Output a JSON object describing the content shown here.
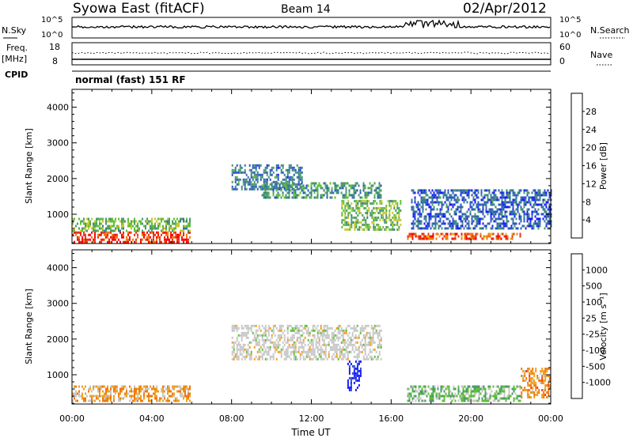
{
  "header": {
    "title": "Syowa East (fitACF)",
    "beam": "Beam 14",
    "date": "02/Apr/2012"
  },
  "nsky_panel": {
    "left_label": "N.Sky",
    "right_label": "N.Search",
    "left_ticks": [
      "10^5",
      "10^0"
    ],
    "right_ticks": [
      "10^5",
      "10^0"
    ]
  },
  "freq_panel": {
    "left_label_1": "Freq.",
    "left_label_2": "[MHz]",
    "right_label": "Nave",
    "left_ticks": [
      "18",
      "8"
    ],
    "right_ticks": [
      "60",
      "0"
    ]
  },
  "cpid": {
    "label": "CPID",
    "value": "normal (fast) 151 RF"
  },
  "colors": {
    "power_scale": [
      "#1a1aff",
      "#2b55c8",
      "#3a7a98",
      "#4a9a6a",
      "#5fbf3a",
      "#c8c832",
      "#f0b020",
      "#f07a10",
      "#e8341a",
      "#ff0000"
    ],
    "velocity_scale": [
      "#ff0000",
      "#f04010",
      "#f07a10",
      "#f0a020",
      "#c8c8c8",
      "#c8c8c8",
      "#5fbf3a",
      "#4a9a6a",
      "#2b55c8",
      "#1a1aff"
    ]
  },
  "chart_data": [
    {
      "type": "heatmap",
      "name": "power",
      "x_ticks": [
        "00:00",
        "04:00",
        "08:00",
        "12:00",
        "16:00",
        "20:00",
        "00:00"
      ],
      "xlim_hours": [
        0,
        24
      ],
      "ylabel": "Slant Range [km]",
      "ylim": [
        180,
        4500
      ],
      "y_ticks": [
        1000,
        2000,
        3000,
        4000
      ],
      "colorbar": {
        "label": "Power [dB]",
        "ticks": [
          "28",
          "24",
          "20",
          "16",
          "12",
          "8",
          "4"
        ],
        "range": [
          0,
          32
        ]
      },
      "regions": [
        {
          "t0": 0.0,
          "t1": 5.9,
          "r0": 250,
          "r1": 520,
          "value": 28
        },
        {
          "t0": 0.0,
          "t1": 5.9,
          "r0": 520,
          "r1": 900,
          "value": 14
        },
        {
          "t0": 8.0,
          "t1": 11.5,
          "r0": 1700,
          "r1": 2400,
          "value": 8
        },
        {
          "t0": 9.5,
          "t1": 15.5,
          "r0": 1450,
          "r1": 1900,
          "value": 10
        },
        {
          "t0": 13.5,
          "t1": 16.5,
          "r0": 600,
          "r1": 1400,
          "value": 14
        },
        {
          "t0": 16.8,
          "t1": 22.5,
          "r0": 300,
          "r1": 480,
          "value": 26
        },
        {
          "t0": 17.0,
          "t1": 24.0,
          "r0": 600,
          "r1": 1700,
          "value": 6
        }
      ]
    },
    {
      "type": "heatmap",
      "name": "velocity",
      "x_ticks": [
        "00:00",
        "04:00",
        "08:00",
        "12:00",
        "16:00",
        "20:00",
        "00:00"
      ],
      "xlim_hours": [
        0,
        24
      ],
      "xlabel": "Time UT",
      "ylabel": "Slant Range [km]",
      "ylim": [
        180,
        4500
      ],
      "y_ticks": [
        1000,
        2000,
        3000,
        4000
      ],
      "colorbar": {
        "label": "Velocity [m s⁻¹]",
        "ticks": [
          "1000",
          "500",
          "100",
          "25",
          "-25",
          "-100",
          "-500",
          "-1000"
        ]
      },
      "regions": [
        {
          "t0": 0.0,
          "t1": 5.9,
          "r0": 250,
          "r1": 700,
          "value": -300
        },
        {
          "t0": 8.0,
          "t1": 15.5,
          "r0": 1450,
          "r1": 2400,
          "value": 0
        },
        {
          "t0": 13.8,
          "t1": 14.5,
          "r0": 600,
          "r1": 1400,
          "value": 900
        },
        {
          "t0": 16.8,
          "t1": 22.5,
          "r0": 300,
          "r1": 700,
          "value": 300
        },
        {
          "t0": 22.5,
          "t1": 24.0,
          "r0": 400,
          "r1": 1200,
          "value": -400
        }
      ]
    }
  ]
}
